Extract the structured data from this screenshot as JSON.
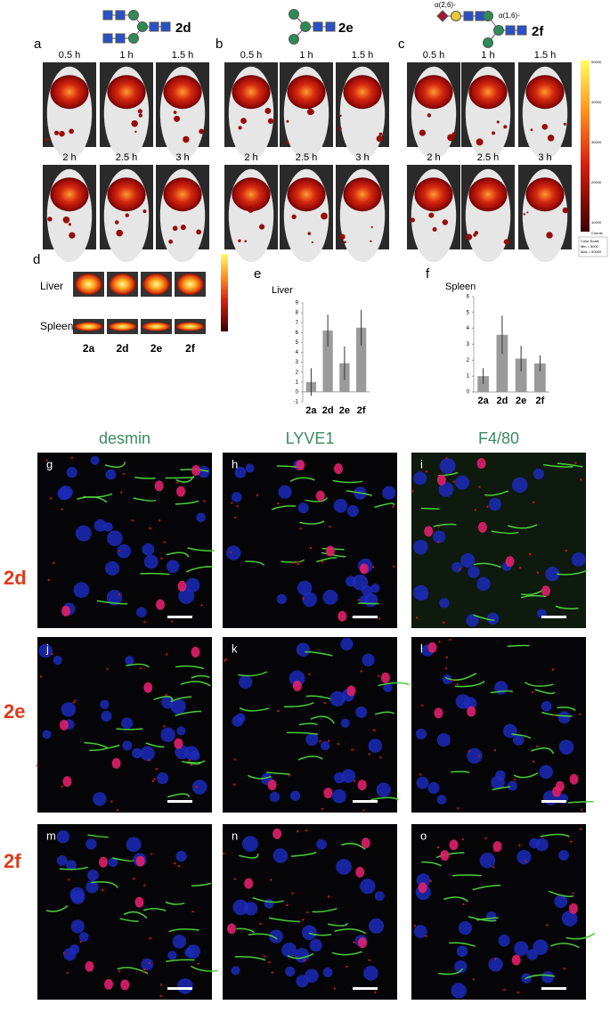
{
  "glycans": [
    {
      "label": "2d"
    },
    {
      "label": "2e"
    },
    {
      "label": "2f",
      "linkages": [
        "α(2,6)-",
        "α(1,6)-"
      ]
    }
  ],
  "imaging_panels": [
    {
      "label": "a",
      "times": [
        "0.5 h",
        "1 h",
        "1.5 h",
        "2 h",
        "2.5 h",
        "3 h"
      ]
    },
    {
      "label": "b",
      "times": [
        "0.5 h",
        "1 h",
        "1.5 h",
        "2 h",
        "2.5 h",
        "3 h"
      ]
    },
    {
      "label": "c",
      "times": [
        "0.5 h",
        "1 h",
        "1.5 h",
        "2 h",
        "2.5 h",
        "3 h"
      ]
    }
  ],
  "color_scale": {
    "ticks": [
      "50000",
      "40000",
      "30000",
      "20000",
      "10000"
    ],
    "unit": "Counts",
    "note": [
      "Color Scale",
      "Min = 5000",
      "Max = 50000"
    ]
  },
  "ex_vivo": {
    "label": "d",
    "rows": [
      "Liver",
      "Spleen"
    ],
    "compounds": [
      "2a",
      "2d",
      "2e",
      "2f"
    ]
  },
  "chart_data": [
    {
      "type": "bar",
      "panel_label": "e",
      "title": "Liver",
      "categories": [
        "2a",
        "2d",
        "2e",
        "2f"
      ],
      "values": [
        1.0,
        6.2,
        2.9,
        6.5
      ],
      "errors": [
        1.4,
        1.6,
        1.7,
        1.8
      ],
      "color": "#9a9a9a",
      "ylim": [
        -1,
        9
      ],
      "yticks": [
        -1,
        0,
        1,
        2,
        3,
        4,
        5,
        6,
        7,
        8,
        9
      ]
    },
    {
      "type": "bar",
      "panel_label": "f",
      "title": "Spleen",
      "categories": [
        "2a",
        "2d",
        "2e",
        "2f"
      ],
      "values": [
        1.0,
        3.6,
        2.1,
        1.8
      ],
      "errors": [
        0.5,
        1.2,
        0.8,
        0.5
      ],
      "color": "#9a9a9a",
      "ylim": [
        0,
        6
      ],
      "yticks": [
        0,
        1,
        2,
        3,
        4,
        5,
        6
      ]
    }
  ],
  "microscopy": {
    "columns": [
      "desmin",
      "LYVE1",
      "F4/80"
    ],
    "rows": [
      "2d",
      "2e",
      "2f"
    ],
    "panels": [
      "g",
      "h",
      "i",
      "j",
      "k",
      "l",
      "m",
      "n",
      "o"
    ]
  }
}
